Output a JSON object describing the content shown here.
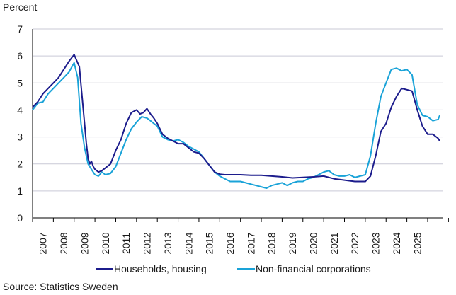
{
  "chart_data": {
    "type": "line",
    "title": "",
    "ylabel": "Percent",
    "xlabel": "",
    "ylim": [
      0,
      7
    ],
    "yticks": [
      0,
      1,
      2,
      3,
      4,
      5,
      6,
      7
    ],
    "xlim": [
      2006.0,
      2025.75
    ],
    "xticks": [
      "2007",
      "2008",
      "2009",
      "2010",
      "2011",
      "2012",
      "2013",
      "2014",
      "2015",
      "2016",
      "2017",
      "2018",
      "2019",
      "2020",
      "2021",
      "2022",
      "2023",
      "2024",
      "2025"
    ],
    "grid": "horizontal",
    "legend_position": "bottom",
    "source": "Source: Statistics Sweden",
    "series": [
      {
        "name": "Households, housing",
        "color": "#1c1c8c",
        "x": [
          2006.0,
          2006.25,
          2006.5,
          2006.75,
          2007.0,
          2007.25,
          2007.5,
          2007.75,
          2008.0,
          2008.25,
          2008.5,
          2008.58,
          2008.67,
          2008.75,
          2008.83,
          2008.92,
          2009.0,
          2009.17,
          2009.33,
          2009.5,
          2009.75,
          2010.0,
          2010.25,
          2010.5,
          2010.75,
          2011.0,
          2011.17,
          2011.33,
          2011.5,
          2011.67,
          2011.83,
          2012.0,
          2012.25,
          2012.5,
          2012.75,
          2013.0,
          2013.25,
          2013.5,
          2013.75,
          2014.0,
          2014.25,
          2014.5,
          2014.75,
          2015.0,
          2015.25,
          2015.5,
          2016.0,
          2016.5,
          2017.0,
          2017.5,
          2018.0,
          2018.5,
          2019.0,
          2019.5,
          2020.0,
          2020.5,
          2021.0,
          2021.5,
          2022.0,
          2022.25,
          2022.5,
          2022.75,
          2023.0,
          2023.25,
          2023.5,
          2023.75,
          2024.0,
          2024.25,
          2024.5,
          2024.75,
          2025.0,
          2025.25,
          2025.5,
          2025.58
        ],
        "values": [
          4.1,
          4.3,
          4.6,
          4.8,
          5.0,
          5.2,
          5.5,
          5.8,
          6.05,
          5.6,
          3.5,
          2.8,
          2.2,
          2.0,
          2.1,
          1.9,
          1.8,
          1.7,
          1.75,
          1.85,
          2.0,
          2.5,
          2.9,
          3.5,
          3.9,
          4.0,
          3.85,
          3.9,
          4.05,
          3.85,
          3.7,
          3.5,
          3.1,
          2.95,
          2.85,
          2.75,
          2.75,
          2.6,
          2.45,
          2.4,
          2.2,
          1.95,
          1.7,
          1.62,
          1.6,
          1.6,
          1.6,
          1.58,
          1.58,
          1.55,
          1.52,
          1.48,
          1.5,
          1.52,
          1.55,
          1.45,
          1.4,
          1.35,
          1.35,
          1.55,
          2.3,
          3.2,
          3.5,
          4.1,
          4.5,
          4.8,
          4.75,
          4.7,
          4.0,
          3.4,
          3.1,
          3.1,
          2.95,
          2.85
        ]
      },
      {
        "name": "Non-financial corporations",
        "color": "#1aa3d8",
        "x": [
          2006.0,
          2006.25,
          2006.5,
          2006.75,
          2007.0,
          2007.25,
          2007.5,
          2007.75,
          2008.0,
          2008.17,
          2008.33,
          2008.5,
          2008.67,
          2008.83,
          2009.0,
          2009.17,
          2009.33,
          2009.5,
          2009.75,
          2010.0,
          2010.25,
          2010.5,
          2010.75,
          2011.0,
          2011.25,
          2011.5,
          2011.67,
          2011.83,
          2012.0,
          2012.25,
          2012.5,
          2012.75,
          2013.0,
          2013.25,
          2013.5,
          2013.75,
          2014.0,
          2014.25,
          2014.5,
          2014.75,
          2015.0,
          2015.25,
          2015.5,
          2016.0,
          2016.25,
          2016.5,
          2016.75,
          2017.0,
          2017.25,
          2017.5,
          2017.75,
          2018.0,
          2018.25,
          2018.5,
          2018.75,
          2019.0,
          2019.25,
          2019.5,
          2019.75,
          2020.0,
          2020.25,
          2020.5,
          2020.75,
          2021.0,
          2021.25,
          2021.5,
          2021.75,
          2022.0,
          2022.25,
          2022.5,
          2022.75,
          2023.0,
          2023.25,
          2023.5,
          2023.75,
          2024.0,
          2024.25,
          2024.5,
          2024.75,
          2025.0,
          2025.25,
          2025.5,
          2025.58
        ],
        "values": [
          4.0,
          4.25,
          4.3,
          4.6,
          4.8,
          5.0,
          5.2,
          5.4,
          5.75,
          5.2,
          3.5,
          2.6,
          2.0,
          1.8,
          1.6,
          1.55,
          1.7,
          1.6,
          1.65,
          1.9,
          2.4,
          2.9,
          3.3,
          3.55,
          3.75,
          3.7,
          3.6,
          3.5,
          3.4,
          3.0,
          2.9,
          2.85,
          2.9,
          2.8,
          2.65,
          2.55,
          2.45,
          2.2,
          1.95,
          1.7,
          1.55,
          1.45,
          1.35,
          1.35,
          1.3,
          1.25,
          1.2,
          1.15,
          1.1,
          1.2,
          1.25,
          1.3,
          1.2,
          1.3,
          1.35,
          1.35,
          1.45,
          1.5,
          1.6,
          1.7,
          1.75,
          1.6,
          1.55,
          1.55,
          1.6,
          1.5,
          1.55,
          1.6,
          2.3,
          3.5,
          4.5,
          5.0,
          5.5,
          5.55,
          5.45,
          5.5,
          5.3,
          4.2,
          3.8,
          3.75,
          3.6,
          3.65,
          3.8
        ]
      }
    ]
  }
}
